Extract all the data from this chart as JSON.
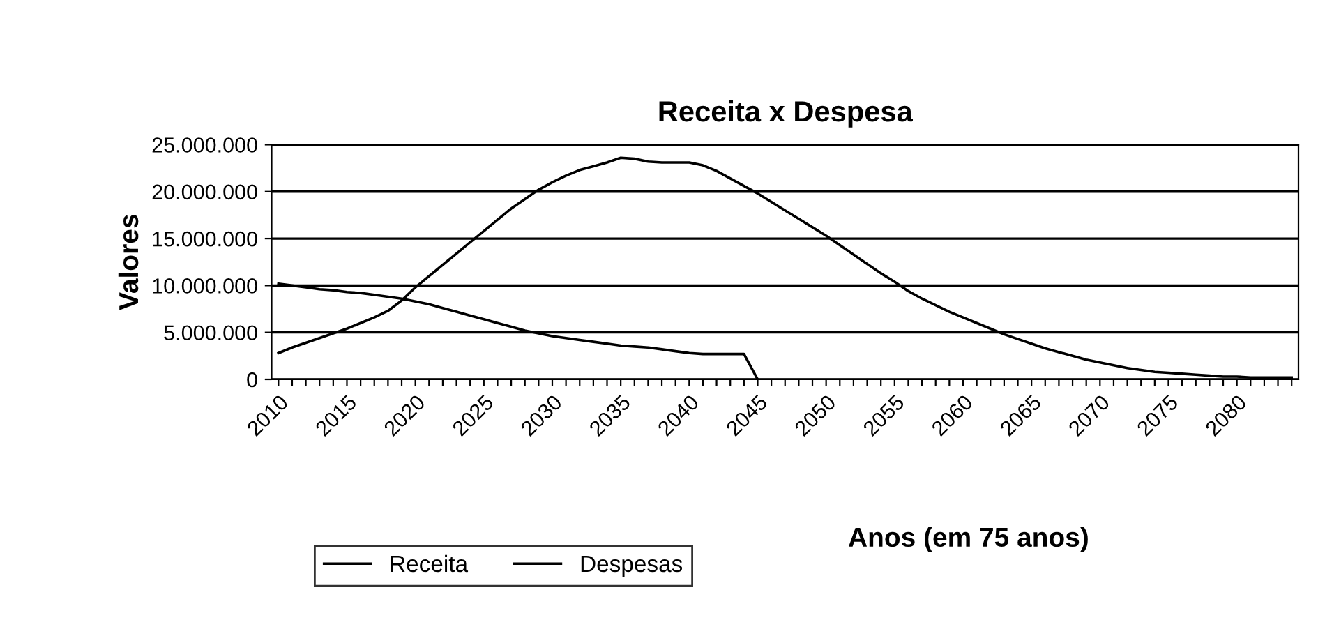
{
  "chart_data": {
    "type": "line",
    "title": "Receita x Despesa",
    "xlabel": "Anos (em 75 anos)",
    "ylabel": "Valores",
    "categories": [
      "2010",
      null,
      null,
      null,
      null,
      "2015",
      null,
      null,
      null,
      null,
      "2020",
      null,
      null,
      null,
      null,
      "2025",
      null,
      null,
      null,
      null,
      "2030",
      null,
      null,
      null,
      null,
      "2035",
      null,
      null,
      null,
      null,
      "2040",
      null,
      null,
      null,
      null,
      "2045",
      null,
      null,
      null,
      null,
      "2050",
      null,
      null,
      null,
      null,
      "2055",
      null,
      null,
      null,
      null,
      "2060",
      null,
      null,
      null,
      null,
      "2065",
      null,
      null,
      null,
      null,
      "2070",
      null,
      null,
      null,
      null,
      "2075",
      null,
      null,
      null,
      null,
      "2080",
      null,
      null,
      null,
      null
    ],
    "series": [
      {
        "name": "Receita",
        "color": "#000000",
        "values": [
          10200000,
          10000000,
          9800000,
          9600000,
          9500000,
          9300000,
          9200000,
          9000000,
          8800000,
          8600000,
          8300000,
          8000000,
          7600000,
          7200000,
          6800000,
          6400000,
          6000000,
          5600000,
          5200000,
          4900000,
          4600000,
          4400000,
          4200000,
          4000000,
          3800000,
          3600000,
          3500000,
          3400000,
          3200000,
          3000000,
          2800000,
          2700000,
          2700000,
          2700000,
          2700000,
          0,
          null,
          null,
          null,
          null,
          null,
          null,
          null,
          null,
          null,
          null,
          null,
          null,
          null,
          null,
          null,
          null,
          null,
          null,
          null,
          null,
          null,
          null,
          null,
          null,
          null,
          null,
          null,
          null,
          null,
          null,
          null,
          null,
          null,
          null,
          null,
          null,
          null,
          null,
          null
        ]
      },
      {
        "name": "Despesas",
        "color": "#000000",
        "values": [
          2800000,
          3400000,
          3900000,
          4400000,
          4900000,
          5400000,
          6000000,
          6600000,
          7300000,
          8400000,
          9800000,
          11000000,
          12200000,
          13400000,
          14600000,
          15800000,
          17000000,
          18200000,
          19200000,
          20200000,
          21000000,
          21700000,
          22300000,
          22700000,
          23100000,
          23600000,
          23500000,
          23200000,
          23100000,
          23100000,
          23100000,
          22800000,
          22200000,
          21400000,
          20600000,
          19800000,
          18900000,
          18000000,
          17100000,
          16200000,
          15300000,
          14300000,
          13300000,
          12300000,
          11300000,
          10400000,
          9400000,
          8600000,
          7900000,
          7200000,
          6600000,
          6000000,
          5400000,
          4800000,
          4300000,
          3800000,
          3300000,
          2900000,
          2500000,
          2100000,
          1800000,
          1500000,
          1200000,
          1000000,
          800000,
          700000,
          600000,
          500000,
          400000,
          300000,
          300000,
          200000,
          200000,
          200000,
          200000
        ]
      }
    ],
    "ylim": [
      0,
      25000000
    ],
    "yticks": [
      {
        "value": 0,
        "label": "0"
      },
      {
        "value": 5000000,
        "label": "5.000.000"
      },
      {
        "value": 10000000,
        "label": "10.000.000"
      },
      {
        "value": 15000000,
        "label": "15.000.000"
      },
      {
        "value": 20000000,
        "label": "20.000.000"
      },
      {
        "value": 25000000,
        "label": "25.000.000"
      }
    ],
    "grid": "y",
    "legend": "bottom",
    "marker": "none",
    "line_style": "solid"
  }
}
